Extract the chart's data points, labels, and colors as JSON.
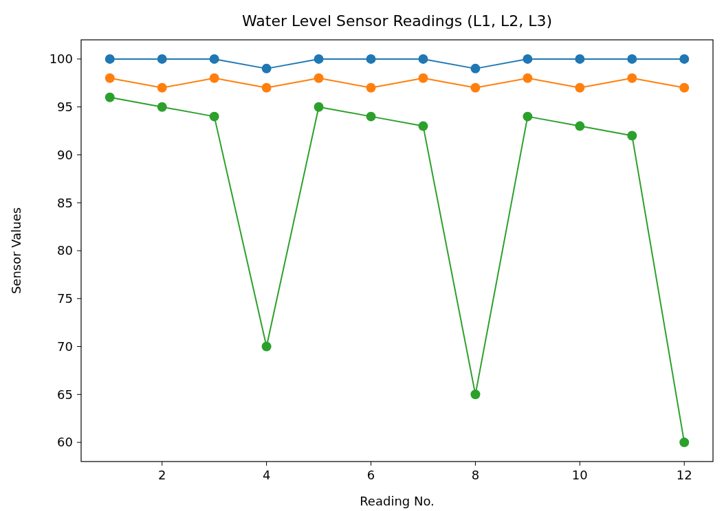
{
  "chart_data": {
    "type": "line",
    "title": "Water Level Sensor Readings (L1, L2, L3)",
    "xlabel": "Reading No.",
    "ylabel": "Sensor Values",
    "x": [
      1,
      2,
      3,
      4,
      5,
      6,
      7,
      8,
      9,
      10,
      11,
      12
    ],
    "series": [
      {
        "color": "#1f77b4",
        "values": [
          100,
          100,
          100,
          99,
          100,
          100,
          100,
          99,
          100,
          100,
          100,
          100
        ]
      },
      {
        "color": "#ff7f0e",
        "values": [
          98,
          97,
          98,
          97,
          98,
          97,
          98,
          97,
          98,
          97,
          98,
          97
        ]
      },
      {
        "color": "#2ca02c",
        "values": [
          96,
          95,
          94,
          70,
          95,
          94,
          93,
          65,
          94,
          93,
          92,
          60
        ]
      }
    ],
    "xlim": [
      0.45,
      12.55
    ],
    "xticks": [
      2,
      4,
      6,
      8,
      10,
      12
    ],
    "ylim": [
      58,
      102
    ],
    "yticks": [
      60,
      65,
      70,
      75,
      80,
      85,
      90,
      95,
      100
    ],
    "marker": "circle",
    "line_style": "solid"
  }
}
